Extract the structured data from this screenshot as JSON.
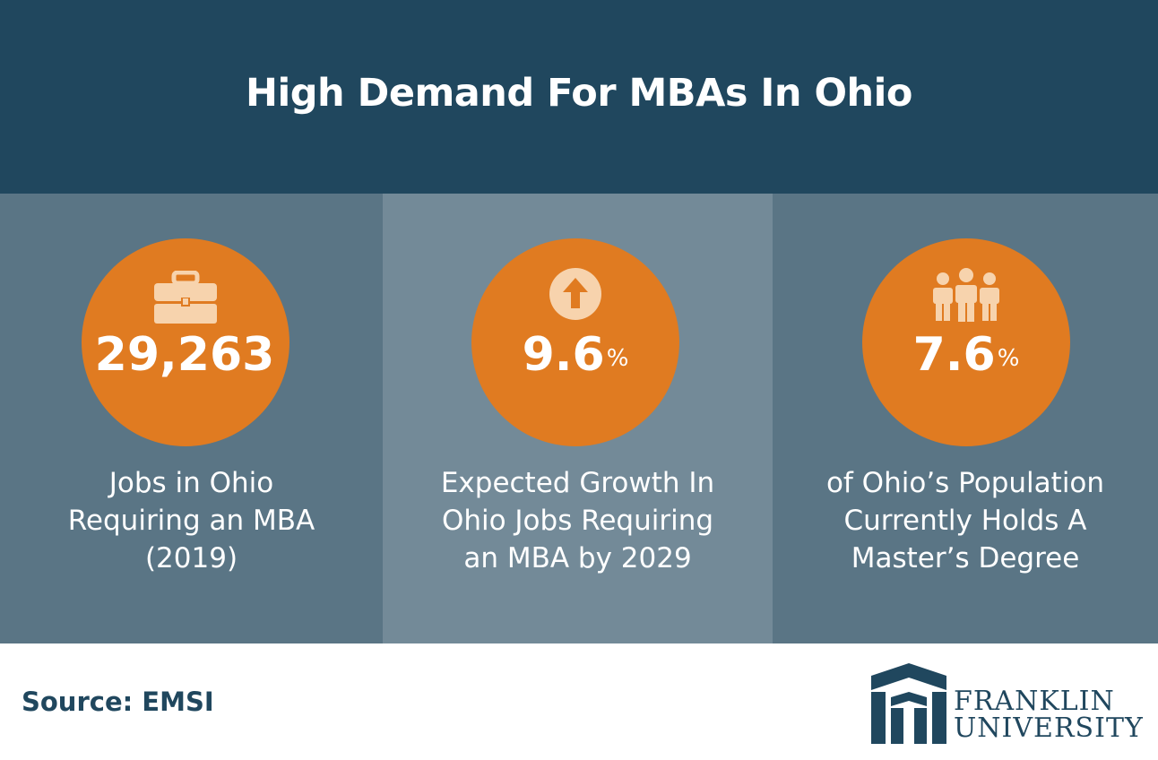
{
  "header": {
    "title": "High Demand For MBAs In Ohio"
  },
  "colors": {
    "header_bg": "#20475e",
    "panel_dark": "#5a7585",
    "panel_light": "#738a98",
    "accent_orange": "#e07b21",
    "icon_fill": "#f7d3ad"
  },
  "stats": [
    {
      "icon": "briefcase-icon",
      "value": "29,263",
      "unit": "",
      "label_lines": [
        "Jobs in Ohio",
        "Requiring an MBA",
        "(2019)"
      ]
    },
    {
      "icon": "arrow-up-circle-icon",
      "value": "9.6",
      "unit": "%",
      "label_lines": [
        "Expected Growth In",
        "Ohio Jobs Requiring",
        "an MBA by 2029"
      ]
    },
    {
      "icon": "people-group-icon",
      "value": "7.6",
      "unit": "%",
      "label_lines": [
        "of Ohio’s Population",
        "Currently Holds A",
        "Master’s Degree"
      ]
    }
  ],
  "footer": {
    "source": "Source: EMSI",
    "logo": {
      "line1": "FRANKLIN",
      "line2": "UNIVERSITY"
    }
  }
}
